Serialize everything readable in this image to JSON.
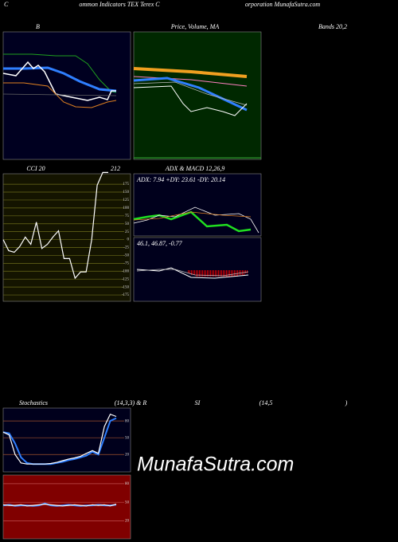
{
  "header": {
    "c": "C",
    "left": "ommon Indicators TEX Terex C",
    "right": "orporation MunafaSutra.com"
  },
  "panels": {
    "b": "B",
    "price": "Price, Volume, MA",
    "bands": "Bands 20,2",
    "adx_title": "ADX  & MACD 12,26,9",
    "adx": "ADX: 7.94  +DY: 23.61 -DY: 20.14",
    "macd": "46.1,  46.87,  -0.77"
  },
  "stoch_title": [
    "Stochastics",
    "(14,3,3) & R",
    "SI",
    "(14,5",
    ")"
  ],
  "watermark": "MunafaSutra.com",
  "chart_data": [
    {
      "type": "line",
      "title": "CCI 20",
      "annotation": "212",
      "ylim": [
        -195,
        208
      ],
      "yticks": [
        175,
        150,
        125,
        100,
        75,
        50,
        25,
        0,
        -25,
        -50,
        -75,
        -100,
        -125,
        -150,
        -175
      ],
      "grid": true,
      "grid_color": "#6b6b1a",
      "background": "#141400",
      "series": [
        {
          "color": "#ffffff",
          "values": [
            0,
            -35,
            -40,
            -22,
            8,
            -15,
            55,
            -28,
            -15,
            8,
            28,
            -60,
            -60,
            -122,
            -102,
            -102,
            0,
            172,
            212,
            212
          ]
        }
      ]
    },
    {
      "type": "line",
      "ylim": [
        -11,
        103
      ],
      "yticks": [
        80,
        50,
        20
      ],
      "grid": true,
      "grid_color": "#a0522d",
      "background": "#00001c",
      "series": [
        {
          "color": "#2f7fff",
          "values": [
            60,
            58,
            40,
            15,
            5,
            3,
            3,
            3,
            3,
            5,
            7,
            10,
            12,
            15,
            18,
            25,
            20,
            50,
            80,
            85
          ]
        },
        {
          "color": "#ffffff",
          "values": [
            60,
            55,
            20,
            5,
            3,
            3,
            3,
            3,
            4,
            6,
            9,
            12,
            14,
            17,
            22,
            27,
            22,
            70,
            92,
            88
          ]
        }
      ]
    },
    {
      "type": "line",
      "ylim": [
        -9,
        94
      ],
      "yticks": [
        80,
        50,
        20
      ],
      "grid": true,
      "grid_color": "#c05050",
      "background": "#800000",
      "series": [
        {
          "color": "#2f7fff",
          "values": [
            45,
            46,
            44,
            45,
            45,
            44,
            45,
            48,
            45,
            44,
            45,
            46,
            45,
            44,
            45,
            45,
            46,
            45,
            45,
            46
          ]
        },
        {
          "color": "#ffffff",
          "values": [
            46,
            45,
            45,
            46,
            44,
            45,
            46,
            47,
            46,
            45,
            44,
            45,
            46,
            45,
            44,
            46,
            45,
            46,
            44,
            47
          ]
        }
      ]
    }
  ]
}
